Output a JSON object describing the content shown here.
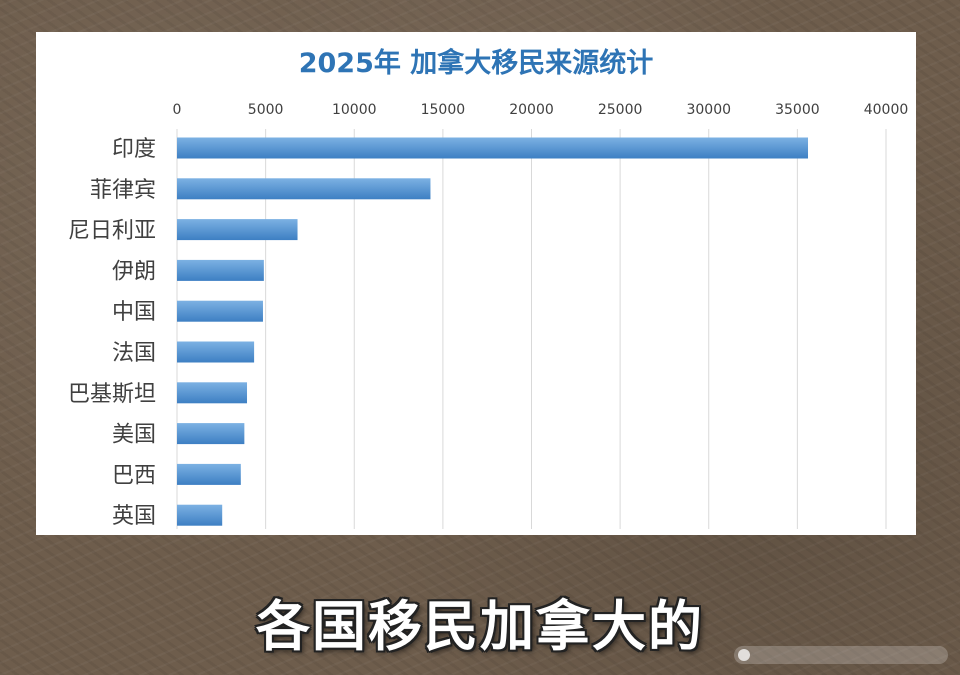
{
  "caption": "各国移民加拿大的",
  "colors": {
    "bar_light": "#7cb1e3",
    "bar_dark": "#3d7fc3",
    "title": "#2e74b5",
    "grid": "#d9d9d9",
    "text": "#404040"
  },
  "chart_data": {
    "type": "bar",
    "orientation": "horizontal",
    "title": "2025年 加拿大移民来源统计",
    "categories": [
      "印度",
      "菲律宾",
      "尼日利亚",
      "伊朗",
      "中国",
      "法国",
      "巴基斯坦",
      "美国",
      "巴西",
      "英国"
    ],
    "values": [
      35600,
      14300,
      6800,
      4900,
      4850,
      4350,
      3950,
      3800,
      3600,
      2550
    ],
    "xlim": [
      0,
      40000
    ],
    "xticks": [
      0,
      5000,
      10000,
      15000,
      20000,
      25000,
      30000,
      35000,
      40000
    ],
    "tick_labels": [
      "0",
      "5000",
      "10000",
      "15000",
      "20000",
      "25000",
      "30000",
      "35000",
      "40000"
    ],
    "xaxis_position": "top",
    "grid": "vertical",
    "legend": "none"
  }
}
